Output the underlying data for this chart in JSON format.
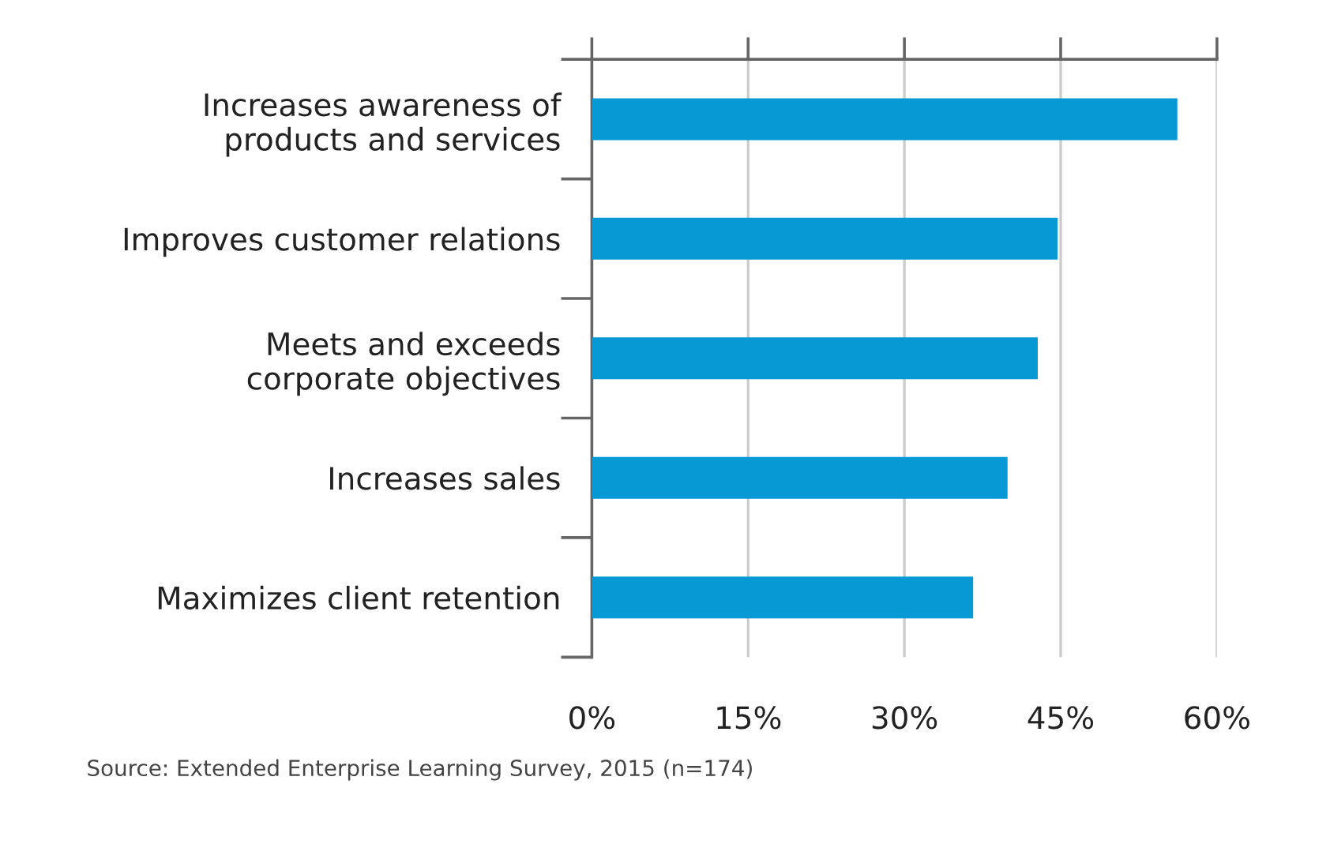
{
  "chart_data": {
    "type": "bar",
    "orientation": "horizontal",
    "categories": [
      "Increases awareness of\nproducts and services",
      "Improves customer relations",
      "Meets and exceeds\ncorporate objectives",
      "Increases sales",
      "Maximizes client retention"
    ],
    "values": [
      56.2,
      44.7,
      42.8,
      39.9,
      36.6
    ],
    "color": "#0799d4",
    "xlim": [
      0,
      60
    ],
    "xticks": [
      {
        "value": 0,
        "label": "0%"
      },
      {
        "value": 15,
        "label": "15%"
      },
      {
        "value": 30,
        "label": "30%"
      },
      {
        "value": 45,
        "label": "45%"
      },
      {
        "value": 60,
        "label": "60%"
      }
    ],
    "grid": "x",
    "annotations": [
      "Source: Extended Enterprise Learning Survey, 2015 (n=174)"
    ]
  }
}
